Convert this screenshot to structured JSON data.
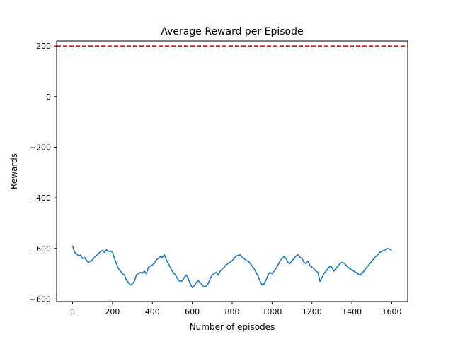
{
  "chart_data": {
    "type": "line",
    "title": "Average Reward per Episode",
    "xlabel": "Number of episodes",
    "ylabel": "Rewards",
    "xlim": [
      -80,
      1680
    ],
    "ylim": [
      -810,
      220
    ],
    "xticks": [
      0,
      200,
      400,
      600,
      800,
      1000,
      1200,
      1400,
      1600
    ],
    "xtick_labels": [
      "0",
      "200",
      "400",
      "600",
      "800",
      "1000",
      "1200",
      "1400",
      "1600"
    ],
    "yticks": [
      200,
      0,
      -200,
      -400,
      -600,
      -800
    ],
    "ytick_labels": [
      "200",
      "0",
      "−200",
      "−400",
      "−600",
      "−800"
    ],
    "grid": false,
    "reference_line": {
      "y": 200,
      "style": "dashed",
      "color": "#ff0000"
    },
    "series": [
      {
        "color": "#1f77b4",
        "x": [
          0,
          10,
          20,
          30,
          40,
          50,
          60,
          70,
          80,
          90,
          100,
          110,
          120,
          130,
          140,
          150,
          160,
          170,
          180,
          190,
          200,
          210,
          220,
          230,
          240,
          250,
          260,
          270,
          280,
          290,
          300,
          310,
          320,
          330,
          340,
          350,
          360,
          370,
          380,
          390,
          400,
          410,
          420,
          430,
          440,
          450,
          460,
          470,
          480,
          490,
          500,
          510,
          520,
          530,
          540,
          550,
          560,
          570,
          580,
          590,
          600,
          610,
          620,
          630,
          640,
          650,
          660,
          670,
          680,
          690,
          700,
          710,
          720,
          730,
          740,
          750,
          760,
          770,
          780,
          790,
          800,
          810,
          820,
          830,
          840,
          850,
          860,
          870,
          880,
          890,
          900,
          910,
          920,
          930,
          940,
          950,
          960,
          970,
          980,
          990,
          1000,
          1010,
          1020,
          1030,
          1040,
          1050,
          1060,
          1070,
          1080,
          1090,
          1100,
          1110,
          1120,
          1130,
          1140,
          1150,
          1160,
          1170,
          1180,
          1190,
          1200,
          1210,
          1220,
          1230,
          1240,
          1250,
          1260,
          1270,
          1280,
          1290,
          1300,
          1310,
          1320,
          1330,
          1340,
          1350,
          1360,
          1370,
          1380,
          1390,
          1400,
          1410,
          1420,
          1430,
          1440,
          1450,
          1460,
          1470,
          1480,
          1490,
          1500,
          1510,
          1520,
          1530,
          1540,
          1550,
          1560,
          1570,
          1580,
          1590,
          1600
        ],
        "y": [
          -590,
          -615,
          -622,
          -630,
          -626,
          -640,
          -635,
          -648,
          -655,
          -650,
          -645,
          -635,
          -628,
          -620,
          -612,
          -608,
          -615,
          -605,
          -612,
          -610,
          -615,
          -640,
          -660,
          -680,
          -690,
          -700,
          -705,
          -725,
          -735,
          -745,
          -740,
          -730,
          -705,
          -700,
          -695,
          -698,
          -690,
          -700,
          -675,
          -670,
          -665,
          -658,
          -645,
          -640,
          -632,
          -635,
          -625,
          -645,
          -660,
          -675,
          -690,
          -700,
          -710,
          -725,
          -730,
          -728,
          -715,
          -705,
          -720,
          -740,
          -755,
          -748,
          -735,
          -728,
          -735,
          -745,
          -752,
          -748,
          -738,
          -720,
          -705,
          -700,
          -695,
          -705,
          -690,
          -682,
          -675,
          -665,
          -660,
          -655,
          -648,
          -640,
          -630,
          -628,
          -625,
          -635,
          -640,
          -648,
          -650,
          -658,
          -670,
          -680,
          -695,
          -710,
          -730,
          -745,
          -740,
          -725,
          -705,
          -695,
          -700,
          -690,
          -680,
          -665,
          -650,
          -640,
          -632,
          -640,
          -655,
          -660,
          -648,
          -640,
          -630,
          -625,
          -635,
          -640,
          -655,
          -660,
          -650,
          -668,
          -675,
          -680,
          -690,
          -695,
          -730,
          -715,
          -700,
          -690,
          -680,
          -670,
          -675,
          -690,
          -680,
          -670,
          -660,
          -655,
          -658,
          -665,
          -675,
          -680,
          -685,
          -690,
          -695,
          -700,
          -705,
          -700,
          -690,
          -680,
          -670,
          -660,
          -650,
          -640,
          -632,
          -625,
          -615,
          -612,
          -608,
          -605,
          -600,
          -603,
          -608
        ]
      }
    ]
  }
}
